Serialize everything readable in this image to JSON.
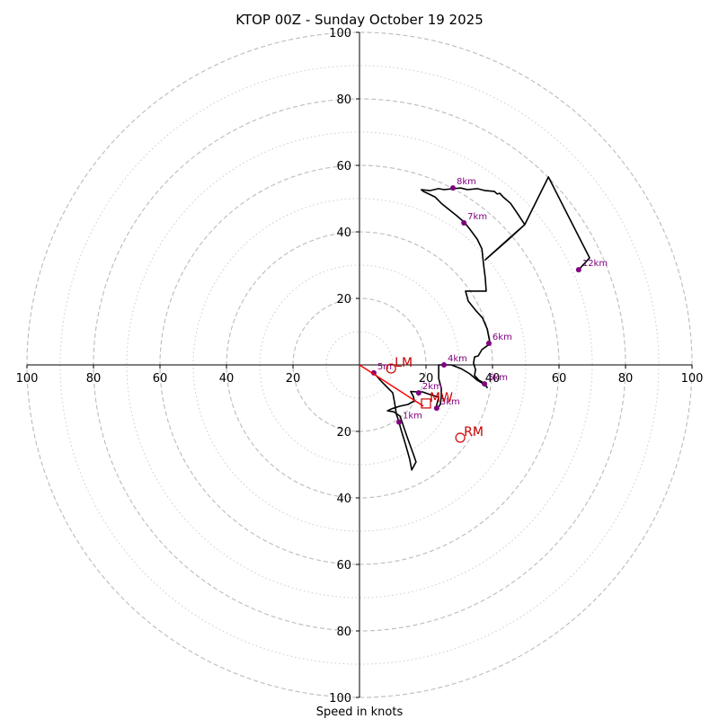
{
  "chart_data": {
    "type": "hodograph",
    "title": "KTOP 00Z - Sunday October 19 2025",
    "xlabel": "Speed in knots",
    "range": [
      -100,
      100
    ],
    "major_rings": [
      20,
      40,
      60,
      80,
      100
    ],
    "minor_rings": [
      10,
      30,
      50,
      70,
      90
    ],
    "x_ticks": [
      {
        "value": -100,
        "label": "100"
      },
      {
        "value": -80,
        "label": "80"
      },
      {
        "value": -60,
        "label": "60"
      },
      {
        "value": -40,
        "label": "40"
      },
      {
        "value": -20,
        "label": "20"
      },
      {
        "value": 20,
        "label": "20"
      },
      {
        "value": 40,
        "label": "40"
      },
      {
        "value": 60,
        "label": "60"
      },
      {
        "value": 80,
        "label": "80"
      },
      {
        "value": 100,
        "label": "100"
      }
    ],
    "y_ticks": [
      {
        "value": 100,
        "label": "100"
      },
      {
        "value": 80,
        "label": "80"
      },
      {
        "value": 60,
        "label": "60"
      },
      {
        "value": 40,
        "label": "40"
      },
      {
        "value": 20,
        "label": "20"
      },
      {
        "value": -20,
        "label": "20"
      },
      {
        "value": -40,
        "label": "40"
      },
      {
        "value": -60,
        "label": "60"
      },
      {
        "value": -80,
        "label": "80"
      },
      {
        "value": -100,
        "label": "100"
      }
    ],
    "trace": [
      [
        4.3,
        -2.4
      ],
      [
        6.5,
        -4.9
      ],
      [
        8.6,
        -7.0
      ],
      [
        10.0,
        -8.4
      ],
      [
        10.5,
        -11.1
      ],
      [
        11.1,
        -14.9
      ],
      [
        11.9,
        -17.2
      ],
      [
        12.4,
        -19.2
      ],
      [
        13.8,
        -23.8
      ],
      [
        15.1,
        -28.4
      ],
      [
        15.7,
        -31.6
      ],
      [
        17.0,
        -29.2
      ],
      [
        16.2,
        -26.8
      ],
      [
        14.3,
        -21.6
      ],
      [
        12.2,
        -15.4
      ],
      [
        10.3,
        -14.1
      ],
      [
        8.4,
        -13.8
      ],
      [
        9.7,
        -13.2
      ],
      [
        12.2,
        -12.4
      ],
      [
        14.6,
        -11.9
      ],
      [
        16.5,
        -10.8
      ],
      [
        16.2,
        -9.5
      ],
      [
        15.4,
        -8.0
      ],
      [
        17.3,
        -8.1
      ],
      [
        18.9,
        -8.1
      ],
      [
        21.1,
        -8.9
      ],
      [
        23.8,
        -9.7
      ],
      [
        23.2,
        -12.2
      ],
      [
        23.5,
        -13.0
      ],
      [
        24.3,
        -11.9
      ],
      [
        24.6,
        -9.5
      ],
      [
        24.6,
        -7.0
      ],
      [
        23.8,
        -4.1
      ],
      [
        23.8,
        0.0
      ],
      [
        25.4,
        0.0
      ],
      [
        27.6,
        0.0
      ],
      [
        30.5,
        -1.1
      ],
      [
        33.2,
        -2.7
      ],
      [
        35.4,
        -4.6
      ],
      [
        37.6,
        -5.9
      ],
      [
        38.4,
        -6.8
      ],
      [
        37.3,
        -5.4
      ],
      [
        35.9,
        -4.6
      ],
      [
        34.6,
        -3.2
      ],
      [
        34.9,
        -1.4
      ],
      [
        34.3,
        0.5
      ],
      [
        34.6,
        2.4
      ],
      [
        35.7,
        2.7
      ],
      [
        36.8,
        4.6
      ],
      [
        38.6,
        5.9
      ],
      [
        39.2,
        6.8
      ],
      [
        38.4,
        10.8
      ],
      [
        37.0,
        14.1
      ],
      [
        35.1,
        16.2
      ],
      [
        32.7,
        19.2
      ],
      [
        31.9,
        22.2
      ],
      [
        38.1,
        22.2
      ],
      [
        37.8,
        26.2
      ],
      [
        37.3,
        30.3
      ],
      [
        36.8,
        34.9
      ],
      [
        35.4,
        37.8
      ],
      [
        33.2,
        40.8
      ],
      [
        31.4,
        43.0
      ],
      [
        29.2,
        44.9
      ],
      [
        26.2,
        47.3
      ],
      [
        24.6,
        48.6
      ],
      [
        22.7,
        50.5
      ],
      [
        19.2,
        52.2
      ],
      [
        18.6,
        52.7
      ],
      [
        21.1,
        52.4
      ],
      [
        23.8,
        53.0
      ],
      [
        25.4,
        52.7
      ],
      [
        28.1,
        53.0
      ],
      [
        30.5,
        53.2
      ],
      [
        32.4,
        52.7
      ],
      [
        35.4,
        53.0
      ],
      [
        37.8,
        52.4
      ],
      [
        40.5,
        52.2
      ],
      [
        41.4,
        51.4
      ],
      [
        42.2,
        51.6
      ],
      [
        43.2,
        50.5
      ],
      [
        45.4,
        48.6
      ],
      [
        47.6,
        45.4
      ],
      [
        49.7,
        42.2
      ],
      [
        44.9,
        37.8
      ],
      [
        37.8,
        31.6
      ],
      [
        45.4,
        38.4
      ],
      [
        49.7,
        42.2
      ],
      [
        56.8,
        56.5
      ],
      [
        69.2,
        32.2
      ],
      [
        65.9,
        28.6
      ]
    ],
    "storm_motion_line": [
      [
        0,
        0
      ],
      [
        19.2,
        -12.4
      ]
    ],
    "height_markers": [
      {
        "label": "5m",
        "u": 4.3,
        "v": -2.4
      },
      {
        "label": "1km",
        "u": 11.9,
        "v": -17.2
      },
      {
        "label": "2km",
        "u": 17.8,
        "v": -8.4
      },
      {
        "label": "3km",
        "u": 23.2,
        "v": -13.0
      },
      {
        "label": "4km",
        "u": 25.4,
        "v": 0.0
      },
      {
        "label": "5km",
        "u": 37.6,
        "v": -5.7
      },
      {
        "label": "6km",
        "u": 38.9,
        "v": 6.5
      },
      {
        "label": "7km",
        "u": 31.4,
        "v": 42.7
      },
      {
        "label": "8km",
        "u": 28.1,
        "v": 53.2
      },
      {
        "label": "12km",
        "u": 65.9,
        "v": 28.6
      }
    ],
    "storm_points": [
      {
        "label": "LM",
        "u": 9.5,
        "v": -1.1,
        "marker": "circle"
      },
      {
        "label": "MW",
        "u": 20.0,
        "v": -11.6,
        "marker": "square"
      },
      {
        "label": "RM",
        "u": 30.3,
        "v": -21.9,
        "marker": "circle"
      }
    ],
    "colors": {
      "trace": "#000000",
      "markers": "#800080",
      "storm": "#cc0000",
      "storm_line": "#ff0000",
      "grid": "#bbbbbb"
    }
  }
}
